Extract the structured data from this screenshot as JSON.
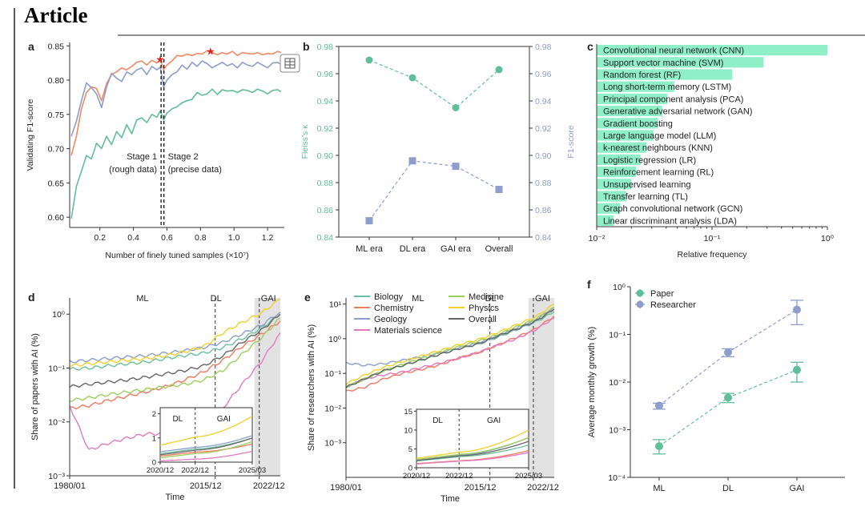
{
  "header": {
    "title": "Article"
  },
  "colors": {
    "orange": "#f08a64",
    "slate": "#8e9dcc",
    "green": "#5fbf98",
    "teal": "#6abf9f",
    "red": "#ee7a60",
    "blue": "#8aa0cc",
    "lime": "#9ccf5c",
    "yellow": "#f2cf2a",
    "pink": "#e27ac0",
    "gray": "#666666",
    "bar": "#8ff0c8",
    "shade": "#e2e2e2",
    "star": "#e0251e"
  },
  "chart_data": [
    {
      "panel": "a",
      "type": "line",
      "xlabel": "Number of finely tuned samples (×10⁷)",
      "ylabel": "Validating F1-score",
      "xlim": [
        0.02,
        1.3
      ],
      "ylim": [
        0.585,
        0.855
      ],
      "xticks": [
        "0.2",
        "0.4",
        "0.6",
        "0.8",
        "1.0",
        "1.2"
      ],
      "yticks": [
        "0.60",
        "0.65",
        "0.70",
        "0.75",
        "0.80",
        "0.85"
      ],
      "x": [
        0.03,
        0.06,
        0.09,
        0.12,
        0.15,
        0.18,
        0.21,
        0.24,
        0.27,
        0.3,
        0.33,
        0.36,
        0.39,
        0.42,
        0.45,
        0.48,
        0.51,
        0.54,
        0.56,
        0.58,
        0.6,
        0.63,
        0.66,
        0.69,
        0.72,
        0.75,
        0.78,
        0.81,
        0.84,
        0.87,
        0.9,
        0.93,
        0.96,
        0.99,
        1.02,
        1.05,
        1.08,
        1.11,
        1.14,
        1.17,
        1.2,
        1.23,
        1.26,
        1.28
      ],
      "series": [
        {
          "values": [
            0.69,
            0.718,
            0.758,
            0.782,
            0.79,
            0.788,
            0.77,
            0.795,
            0.808,
            0.812,
            0.818,
            0.815,
            0.82,
            0.826,
            0.828,
            0.822,
            0.829,
            0.825,
            0.83,
            0.815,
            0.822,
            0.828,
            0.836,
            0.835,
            0.838,
            0.836,
            0.839,
            0.838,
            0.843,
            0.84,
            0.837,
            0.84,
            0.838,
            0.842,
            0.836,
            0.84,
            0.839,
            0.838,
            0.84,
            0.837,
            0.839,
            0.838,
            0.842,
            0.84
          ]
        },
        {
          "values": [
            0.718,
            0.74,
            0.77,
            0.796,
            0.789,
            0.78,
            0.76,
            0.79,
            0.81,
            0.803,
            0.798,
            0.812,
            0.808,
            0.815,
            0.818,
            0.808,
            0.82,
            0.815,
            0.819,
            0.79,
            0.8,
            0.808,
            0.812,
            0.822,
            0.816,
            0.826,
            0.82,
            0.828,
            0.824,
            0.818,
            0.822,
            0.826,
            0.821,
            0.824,
            0.818,
            0.826,
            0.822,
            0.82,
            0.826,
            0.822,
            0.818,
            0.825,
            0.826,
            0.823
          ]
        },
        {
          "values": [
            0.598,
            0.645,
            0.667,
            0.69,
            0.685,
            0.708,
            0.7,
            0.718,
            0.706,
            0.725,
            0.716,
            0.735,
            0.722,
            0.742,
            0.745,
            0.738,
            0.75,
            0.746,
            0.755,
            0.742,
            0.752,
            0.758,
            0.761,
            0.767,
            0.77,
            0.772,
            0.782,
            0.778,
            0.78,
            0.787,
            0.779,
            0.786,
            0.784,
            0.785,
            0.782,
            0.786,
            0.785,
            0.782,
            0.787,
            0.784,
            0.78,
            0.785,
            0.786,
            0.783
          ]
        }
      ],
      "stars": [
        {
          "x": 0.56,
          "y": 0.831
        },
        {
          "x": 0.86,
          "y": 0.843
        }
      ],
      "stage_lines": [
        0.565,
        0.582
      ],
      "annotations": [
        "Stage 1",
        "(rough data)",
        "Stage 2",
        "(precise data)"
      ]
    },
    {
      "panel": "b",
      "type": "line",
      "categories": [
        "ML era",
        "DL era",
        "GAI era",
        "Overall"
      ],
      "ylabel_left": "Fleiss's κ",
      "ylabel_right": "F1-score",
      "ylim": [
        0.84,
        0.98
      ],
      "yticks": [
        "0.84",
        "0.86",
        "0.88",
        "0.90",
        "0.92",
        "0.94",
        "0.96",
        "0.98"
      ],
      "series": [
        {
          "name": "Fleiss's κ",
          "values": [
            0.97,
            0.957,
            0.935,
            0.963
          ]
        },
        {
          "name": "F1-score",
          "values": [
            0.852,
            0.896,
            0.892,
            0.875
          ]
        }
      ]
    },
    {
      "panel": "c",
      "type": "bar",
      "xlabel": "Relative frequency",
      "xscale": "log",
      "xlim": [
        0.01,
        1.0
      ],
      "xticks": [
        "10⁻²",
        "10⁻¹",
        "10⁰"
      ],
      "categories": [
        "Convolutional neural network (CNN)",
        "Support vector machine (SVM)",
        "Random forest (RF)",
        "Long short-term memory (LSTM)",
        "Principal component analysis (PCA)",
        "Generative adversarial network (GAN)",
        "Gradient boosting",
        "Large language model (LLM)",
        "k-nearest neighbours (KNN)",
        "Logistic regression (LR)",
        "Reinforcement learning (RL)",
        "Unsupervised learning",
        "Transfer learning (TL)",
        "Graph convolutional network (GCN)",
        "Linear discriminant analysis (LDA)"
      ],
      "values": [
        1.0,
        0.28,
        0.15,
        0.047,
        0.041,
        0.037,
        0.034,
        0.031,
        0.027,
        0.024,
        0.022,
        0.02,
        0.018,
        0.016,
        0.014
      ]
    },
    {
      "panel": "d",
      "type": "line",
      "yscale": "log",
      "xlabel": "Time",
      "ylabel": "Share of papers with AI (%)",
      "ylim": [
        0.001,
        2.0
      ],
      "yticks": [
        "10⁻³",
        "10⁻²",
        "10⁻¹",
        "10⁰"
      ],
      "xticks": [
        "1980/01",
        "2015/12",
        "2022/12"
      ],
      "eras": [
        "ML",
        "DL",
        "GAI"
      ],
      "x": [
        "1980",
        "1985",
        "1990",
        "1995",
        "2000",
        "2005",
        "2010",
        "2014",
        "2018",
        "2021",
        "2023",
        "2025"
      ],
      "series": [
        {
          "values": [
            0.095,
            0.1,
            0.11,
            0.12,
            0.13,
            0.15,
            0.17,
            0.19,
            0.24,
            0.35,
            0.55,
            1.0
          ]
        },
        {
          "values": [
            0.018,
            0.02,
            0.025,
            0.03,
            0.036,
            0.045,
            0.06,
            0.085,
            0.14,
            0.25,
            0.42,
            0.75
          ]
        },
        {
          "values": [
            0.13,
            0.14,
            0.15,
            0.16,
            0.17,
            0.19,
            0.21,
            0.24,
            0.3,
            0.43,
            0.62,
            1.1
          ]
        },
        {
          "values": [
            0.02,
            0.003,
            0.004,
            0.005,
            0.006,
            0.006,
            0.007,
            0.008,
            0.018,
            0.05,
            0.13,
            0.45
          ]
        },
        {
          "values": [
            0.025,
            0.028,
            0.032,
            0.036,
            0.04,
            0.045,
            0.05,
            0.06,
            0.09,
            0.18,
            0.36,
            0.85
          ]
        },
        {
          "values": [
            0.11,
            0.12,
            0.13,
            0.14,
            0.15,
            0.17,
            0.2,
            0.25,
            0.45,
            0.7,
            1.05,
            1.9
          ]
        },
        {
          "values": [
            0.045,
            0.05,
            0.055,
            0.06,
            0.068,
            0.078,
            0.09,
            0.11,
            0.17,
            0.3,
            0.5,
            1.0
          ]
        }
      ],
      "inset": {
        "xticks": [
          "2020/12",
          "2022/12",
          "2025/03"
        ],
        "yticks": [
          "0",
          "1",
          "2"
        ],
        "eras": [
          "DL",
          "GAI"
        ]
      }
    },
    {
      "panel": "e",
      "type": "line",
      "yscale": "log",
      "xlabel": "Time",
      "ylabel": "Share of researchers with AI (%)",
      "ylim": [
        0.0001,
        15
      ],
      "yticks": [
        "10⁻³",
        "10⁻²",
        "10⁻¹",
        "10⁰",
        "10¹"
      ],
      "xticks": [
        "1980/01",
        "2015/12",
        "2022/12"
      ],
      "eras": [
        "ML",
        "DL",
        "GAI"
      ],
      "legend": [
        "Biology",
        "Chemistry",
        "Geology",
        "Materials science",
        "Medicine",
        "Physics",
        "Overall"
      ],
      "x": [
        "1980",
        "1985",
        "1990",
        "1995",
        "2000",
        "2005",
        "2010",
        "2014",
        "2018",
        "2021",
        "2023",
        "2025"
      ],
      "series": [
        {
          "values": [
            0.04,
            0.07,
            0.12,
            0.17,
            0.24,
            0.36,
            0.52,
            0.7,
            1.1,
            1.8,
            3.0,
            6.0
          ]
        },
        {
          "values": [
            0.03,
            0.04,
            0.07,
            0.1,
            0.13,
            0.18,
            0.28,
            0.4,
            0.65,
            1.1,
            1.9,
            4.5
          ]
        },
        {
          "values": [
            0.2,
            0.17,
            0.19,
            0.24,
            0.3,
            0.4,
            0.55,
            0.75,
            1.2,
            2.0,
            3.4,
            8.0
          ]
        },
        {
          "values": [
            0.04,
            0.07,
            0.09,
            0.11,
            0.15,
            0.2,
            0.28,
            0.4,
            0.65,
            1.0,
            1.8,
            4.0
          ]
        },
        {
          "values": [
            0.04,
            0.07,
            0.12,
            0.18,
            0.27,
            0.4,
            0.6,
            0.85,
            1.3,
            2.2,
            3.6,
            8.0
          ]
        },
        {
          "values": [
            0.05,
            0.09,
            0.15,
            0.22,
            0.32,
            0.46,
            0.68,
            0.95,
            1.5,
            2.5,
            4.2,
            10.0
          ]
        },
        {
          "values": [
            0.04,
            0.07,
            0.12,
            0.17,
            0.25,
            0.36,
            0.52,
            0.72,
            1.2,
            1.9,
            3.2,
            7.0
          ]
        }
      ],
      "inset": {
        "xticks": [
          "2020/12",
          "2022/12",
          "2025/03"
        ],
        "yticks": [
          "0",
          "5",
          "10",
          "15"
        ],
        "eras": [
          "DL",
          "GAI"
        ]
      }
    },
    {
      "panel": "f",
      "type": "scatter",
      "yscale": "log",
      "categories": [
        "ML",
        "DL",
        "GAI"
      ],
      "ylabel": "Average monthly growth (%)",
      "ylim": [
        0.0001,
        1.0
      ],
      "yticks": [
        "10⁻⁴",
        "10⁻³",
        "10⁻²",
        "10⁻¹",
        "10⁰"
      ],
      "series": [
        {
          "name": "Paper",
          "values": [
            0.00045,
            0.0047,
            0.018
          ],
          "err_low": [
            0.00031,
            0.0037,
            0.01
          ],
          "err_high": [
            0.00062,
            0.0058,
            0.026
          ]
        },
        {
          "name": "Researcher",
          "values": [
            0.0032,
            0.042,
            0.33
          ],
          "err_low": [
            0.0027,
            0.034,
            0.16
          ],
          "err_high": [
            0.0036,
            0.05,
            0.52
          ]
        }
      ]
    }
  ]
}
